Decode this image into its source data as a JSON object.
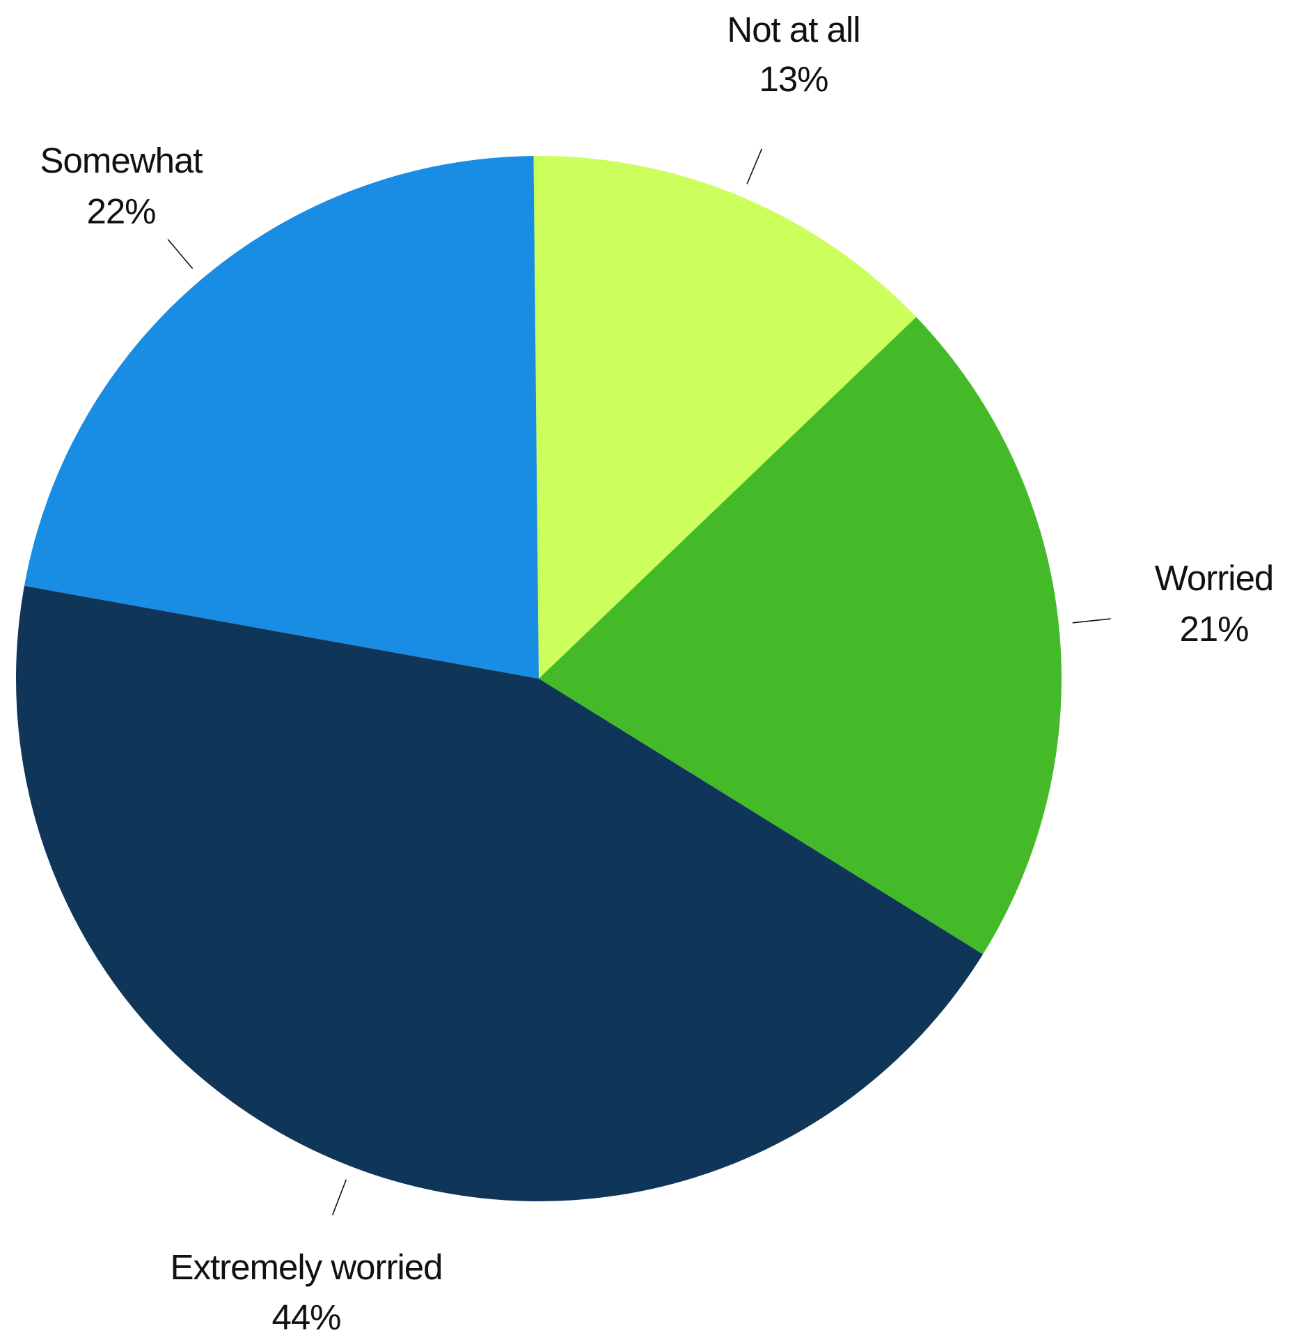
{
  "chart_data": {
    "type": "pie",
    "title": "",
    "slices": [
      {
        "label": "Not at all",
        "value_label": "13%",
        "value": 13,
        "color": "#CCFF5C"
      },
      {
        "label": "Worried",
        "value_label": "21%",
        "value": 21,
        "color": "#44BA28"
      },
      {
        "label": "Extremely worried",
        "value_label": "44%",
        "value": 44,
        "color": "#0F3558"
      },
      {
        "label": "Somewhat",
        "value_label": "22%",
        "value": 22,
        "color": "#198CE3"
      }
    ]
  }
}
